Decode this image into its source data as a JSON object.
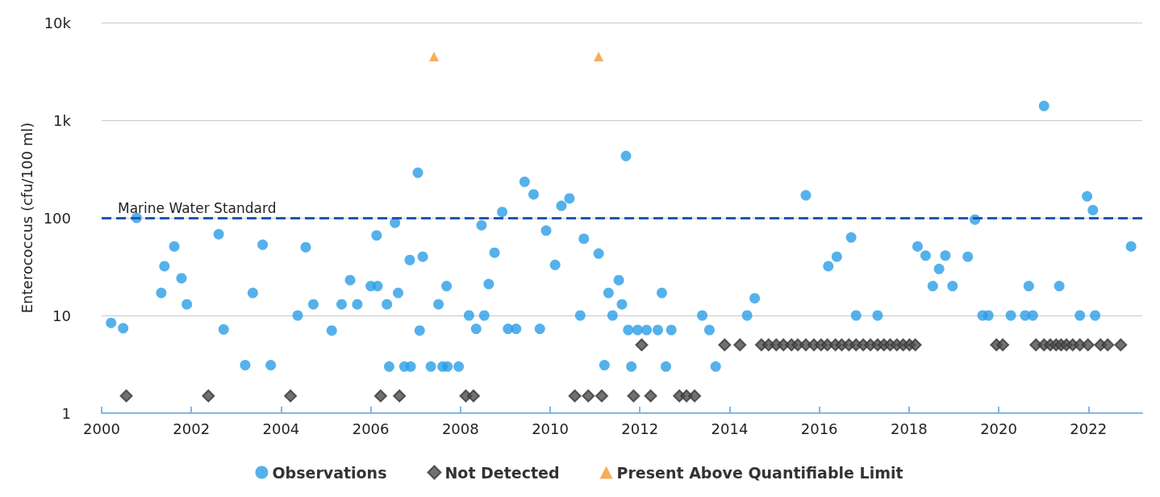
{
  "chart_data": {
    "type": "scatter",
    "ylabel": "Enterococcus (cfu/100 ml)",
    "log": "y",
    "grid": "y",
    "legend": "bottom",
    "xlim": [
      2000,
      2023.2
    ],
    "xticks": [
      2000,
      2002,
      2004,
      2006,
      2008,
      2010,
      2012,
      2014,
      2016,
      2018,
      2020,
      2022
    ],
    "ylim": [
      1,
      10000
    ],
    "yticks": [
      1,
      10,
      100,
      {
        "value": 1000,
        "label": "1k"
      },
      {
        "value": 10000,
        "label": "10k"
      }
    ],
    "ref_lines": [
      {
        "axis": "y",
        "value": 100,
        "label": "Marine Water Standard",
        "color": "#1f56b8",
        "line_style": "dashed"
      }
    ],
    "series": [
      {
        "name": "Observations",
        "color": "#2b9de6",
        "marker": "circle",
        "x": [
          2000.21,
          2000.48,
          2000.78,
          2001.33,
          2001.4,
          2001.62,
          2001.78,
          2001.9,
          2002.61,
          2002.72,
          2003.2,
          2003.37,
          2003.59,
          2003.77,
          2004.37,
          2004.55,
          2004.72,
          2005.13,
          2005.35,
          2005.54,
          2005.7,
          2006.0,
          2006.15,
          2006.13,
          2006.36,
          2006.41,
          2006.54,
          2006.61,
          2006.75,
          2006.89,
          2006.87,
          2007.05,
          2007.09,
          2007.16,
          2007.34,
          2007.6,
          2007.51,
          2007.69,
          2007.71,
          2007.96,
          2008.19,
          2008.35,
          2008.47,
          2008.53,
          2008.63,
          2008.76,
          2008.93,
          2009.06,
          2009.24,
          2009.43,
          2009.63,
          2009.77,
          2009.91,
          2010.11,
          2010.25,
          2010.43,
          2010.67,
          2010.75,
          2011.08,
          2011.21,
          2011.3,
          2011.39,
          2011.53,
          2011.6,
          2011.69,
          2011.74,
          2011.81,
          2011.95,
          2012.15,
          2012.4,
          2012.49,
          2012.58,
          2012.7,
          2013.39,
          2013.55,
          2013.69,
          2014.39,
          2014.56,
          2015.7,
          2016.2,
          2016.39,
          2016.71,
          2016.82,
          2017.3,
          2018.19,
          2018.37,
          2018.53,
          2018.67,
          2018.81,
          2018.97,
          2019.31,
          2019.47,
          2019.64,
          2019.77,
          2020.27,
          2020.59,
          2020.67,
          2020.76,
          2021.01,
          2021.35,
          2021.81,
          2021.97,
          2022.1,
          2022.15,
          2022.95
        ],
        "values": [
          8.4,
          7.4,
          100,
          17,
          32,
          51,
          24,
          13,
          68,
          7.2,
          3.1,
          17,
          53,
          3.1,
          10,
          50,
          13,
          7,
          13,
          23,
          13,
          20,
          20,
          66,
          13,
          3,
          89,
          17,
          3,
          3,
          37,
          290,
          7,
          40,
          3,
          3,
          13,
          20,
          3,
          3,
          10,
          7.3,
          84,
          10,
          21,
          44,
          115,
          7.3,
          7.3,
          234,
          174,
          7.3,
          74,
          33,
          133,
          158,
          10,
          61,
          43,
          3.1,
          17,
          10,
          23,
          13,
          430,
          7.1,
          3,
          7.1,
          7.1,
          7.1,
          17,
          3,
          7.1,
          10,
          7.1,
          3,
          10,
          15,
          170,
          32,
          40,
          63,
          10,
          10,
          51,
          41,
          20,
          30,
          41,
          20,
          40,
          96,
          10,
          10,
          10,
          10,
          20,
          10,
          1400,
          20,
          10,
          166,
          120,
          10,
          51
        ]
      },
      {
        "name": "Not Detected",
        "color": "#4d4d4d",
        "marker": "diamond",
        "x": [
          2000.55,
          2002.38,
          2004.21,
          2006.22,
          2006.64,
          2008.12,
          2008.29,
          2010.55,
          2010.85,
          2011.15,
          2011.86,
          2012.24,
          2012.88,
          2013.04,
          2013.22,
          2012.04,
          2013.89,
          2014.23,
          2014.71,
          2014.87,
          2015.04,
          2015.2,
          2015.38,
          2015.52,
          2015.7,
          2015.88,
          2016.04,
          2016.18,
          2016.36,
          2016.5,
          2016.66,
          2016.82,
          2016.98,
          2017.14,
          2017.3,
          2017.44,
          2017.58,
          2017.73,
          2017.87,
          2018.01,
          2018.14,
          2019.95,
          2020.09,
          2020.83,
          2021.01,
          2021.15,
          2021.28,
          2021.39,
          2021.51,
          2021.65,
          2021.81,
          2021.99,
          2022.27,
          2022.43,
          2022.72
        ],
        "values": [
          1.5,
          1.5,
          1.5,
          1.5,
          1.5,
          1.5,
          1.5,
          1.5,
          1.5,
          1.5,
          1.5,
          1.5,
          1.5,
          1.5,
          1.5,
          5,
          5,
          5,
          5,
          5,
          5,
          5,
          5,
          5,
          5,
          5,
          5,
          5,
          5,
          5,
          5,
          5,
          5,
          5,
          5,
          5,
          5,
          5,
          5,
          5,
          5,
          5,
          5,
          5,
          5,
          5,
          5,
          5,
          5,
          5,
          5,
          5,
          5,
          5,
          5
        ]
      },
      {
        "name": "Present Above Quantifiable Limit",
        "color": "#f39a34",
        "marker": "triangle",
        "x": [
          2007.41,
          2011.08
        ],
        "values": [
          4500,
          4500
        ]
      }
    ]
  }
}
